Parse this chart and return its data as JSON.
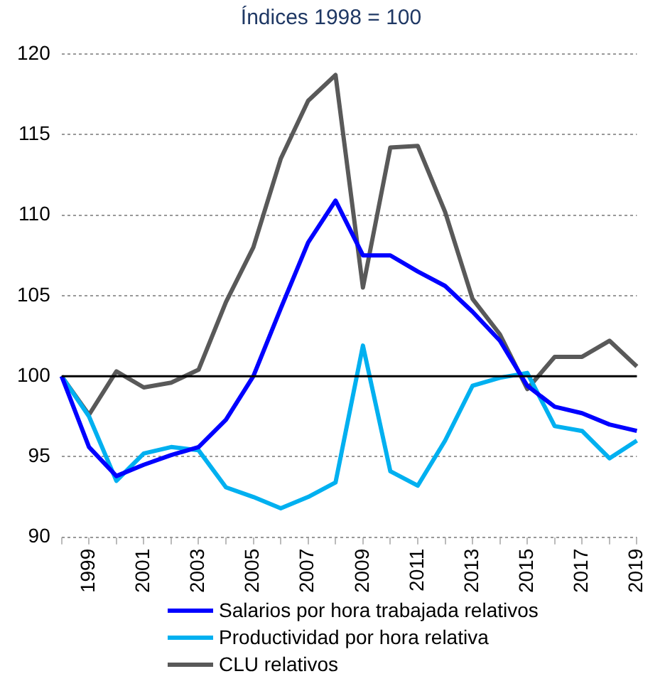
{
  "chart_data": {
    "type": "line",
    "title": "Índices 1998 = 100",
    "categories": [
      null,
      "1999",
      null,
      "2001",
      null,
      "2003",
      null,
      "2005",
      null,
      "2007",
      null,
      "2009",
      null,
      "2011",
      null,
      "2013",
      null,
      "2015",
      null,
      "2017",
      null,
      "2019"
    ],
    "series": [
      {
        "name": "Salarios por hora trabajada relativos",
        "color": "#0000ff",
        "values": [
          100,
          95.6,
          93.8,
          94.5,
          95.1,
          95.6,
          97.3,
          100,
          104.2,
          108.3,
          110.9,
          107.5,
          107.5,
          106.5,
          105.6,
          104,
          102.2,
          99.4,
          98.1,
          97.7,
          97.0,
          96.6
        ]
      },
      {
        "name": "Productividad por hora relativa",
        "color": "#00b0f0",
        "values": [
          100,
          97.5,
          93.5,
          95.2,
          95.6,
          95.4,
          93.1,
          92.5,
          91.8,
          92.5,
          93.4,
          101.9,
          94.1,
          93.2,
          96.0,
          99.4,
          99.9,
          100.2,
          96.9,
          96.6,
          94.9,
          96.0
        ]
      },
      {
        "name": "CLU relativos",
        "color": "#595959",
        "values": [
          100,
          97.6,
          100.3,
          99.3,
          99.6,
          100.4,
          104.6,
          108,
          113.5,
          117.1,
          118.7,
          105.5,
          114.2,
          114.3,
          110.2,
          104.8,
          102.6,
          99.2,
          101.2,
          101.2,
          102.2,
          100.6
        ]
      }
    ],
    "ylim": [
      90,
      120
    ],
    "yticks": [
      90,
      95,
      100,
      105,
      110,
      115,
      120
    ],
    "ref_lines": [
      {
        "axis": "y",
        "value": 100,
        "color": "#000000"
      }
    ],
    "grid": "y",
    "legend": "bottom",
    "marker": "none",
    "line_style": "solid"
  }
}
